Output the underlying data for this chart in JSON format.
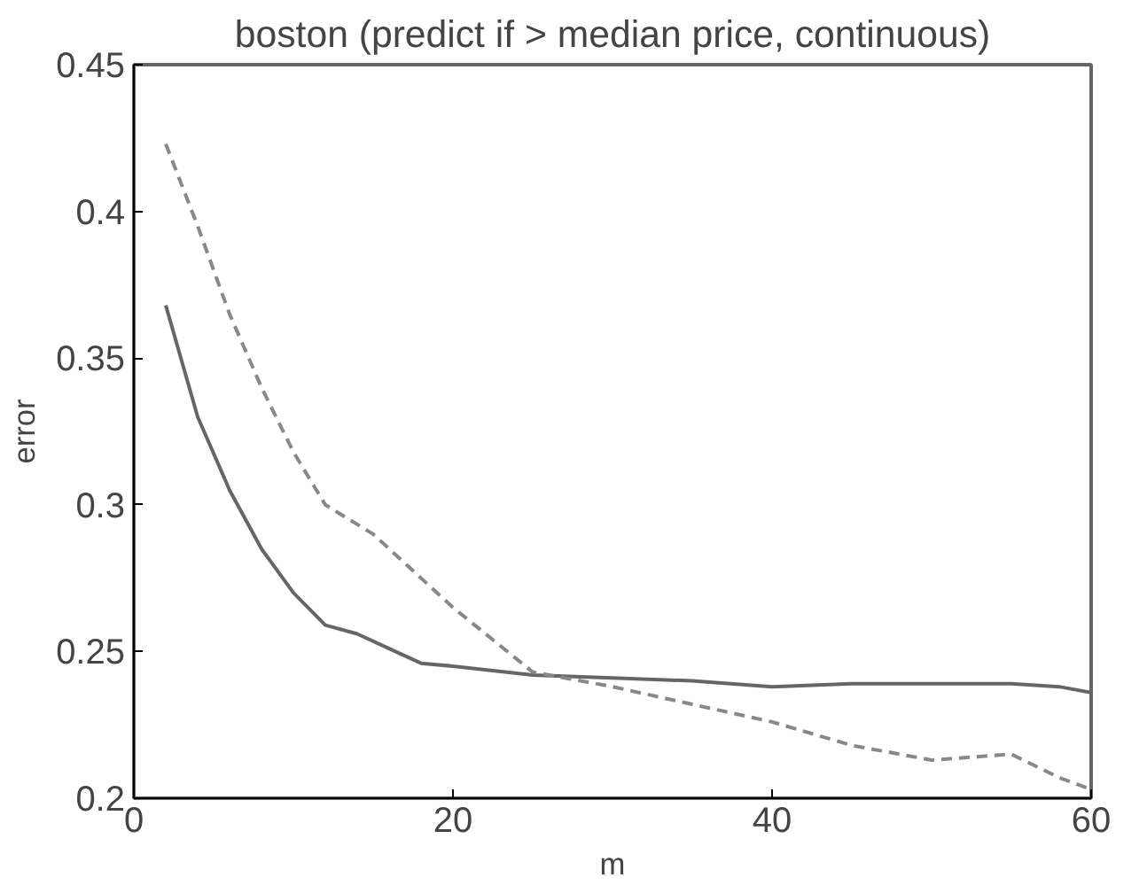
{
  "chart_data": {
    "type": "line",
    "title": "boston (predict if > median price, continuous)",
    "xlabel": "m",
    "ylabel": "error",
    "xlim": [
      0,
      60
    ],
    "ylim": [
      0.2,
      0.45
    ],
    "xticks": [
      0,
      20,
      40,
      60
    ],
    "yticks": [
      0.2,
      0.25,
      0.3,
      0.35,
      0.4,
      0.45
    ],
    "grid": false,
    "series": [
      {
        "color": "#666666",
        "line_style": "solid",
        "x": [
          2,
          4,
          6,
          8,
          10,
          12,
          14,
          16,
          18,
          20,
          25,
          30,
          35,
          40,
          45,
          50,
          55,
          58,
          60
        ],
        "values": [
          0.368,
          0.33,
          0.305,
          0.285,
          0.27,
          0.259,
          0.256,
          0.251,
          0.246,
          0.245,
          0.242,
          0.241,
          0.24,
          0.238,
          0.239,
          0.239,
          0.239,
          0.238,
          0.236
        ]
      },
      {
        "color": "#888888",
        "line_style": "dashed",
        "x": [
          2,
          4,
          6,
          8,
          10,
          12,
          15,
          18,
          20,
          25,
          30,
          35,
          40,
          45,
          50,
          55,
          58,
          60
        ],
        "values": [
          0.423,
          0.395,
          0.365,
          0.34,
          0.318,
          0.3,
          0.29,
          0.275,
          0.265,
          0.243,
          0.238,
          0.232,
          0.226,
          0.218,
          0.213,
          0.215,
          0.207,
          0.203
        ]
      }
    ]
  }
}
